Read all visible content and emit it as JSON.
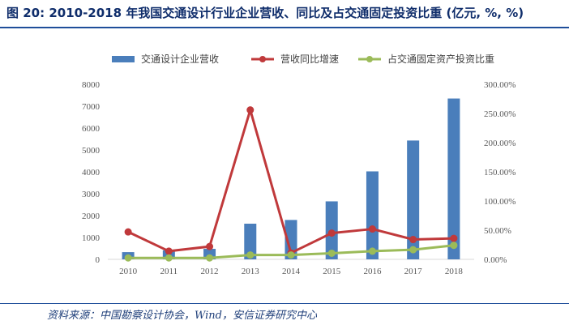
{
  "title": "图 20: 2010-2018 年我国交通设计行业企业营收、同比及占交通固定投资比重 (亿元, %, %)",
  "source": "资料来源：中国勘察设计协会，Wind，安信证券研究中心",
  "colors": {
    "bar": "#4a7ebb",
    "revenue_growth": "#c0393b",
    "investment_share": "#9bbb59",
    "axis": "#d9d9d9",
    "tick_text": "#595959",
    "title_text": "#0f2d6b",
    "rule": "#1f4e9a"
  },
  "chart_data": {
    "type": "bar",
    "title": "图 20: 2010-2018 年我国交通设计行业企业营收、同比及占交通固定投资比重 (亿元, %, %)",
    "categories": [
      "2010",
      "2011",
      "2012",
      "2013",
      "2014",
      "2015",
      "2016",
      "2017",
      "2018"
    ],
    "series": [
      {
        "name": "交通设计企业营收",
        "type": "bar",
        "axis": "left",
        "values": [
          330,
          410,
          480,
          1630,
          1800,
          2650,
          4020,
          5430,
          7350
        ]
      },
      {
        "name": "营收同比增速",
        "type": "line",
        "axis": "right",
        "values": [
          47.0,
          14.0,
          22.0,
          256.0,
          11.0,
          45.0,
          52.0,
          34.0,
          36.0
        ]
      },
      {
        "name": "占交通固定资产投资比重",
        "type": "line",
        "axis": "right",
        "values": [
          2.5,
          2.5,
          2.5,
          7.5,
          7.5,
          10.5,
          14.0,
          16.5,
          24.0
        ]
      }
    ],
    "y_left": {
      "lim": [
        0,
        8000
      ],
      "ticks": [
        "0",
        "1000",
        "2000",
        "3000",
        "4000",
        "5000",
        "6000",
        "7000",
        "8000"
      ]
    },
    "y_right": {
      "lim": [
        0,
        300
      ],
      "ticks": [
        "0.00%",
        "50.00%",
        "100.00%",
        "150.00%",
        "200.00%",
        "250.00%",
        "300.00%"
      ]
    },
    "grid": false,
    "legend_position": "top"
  }
}
